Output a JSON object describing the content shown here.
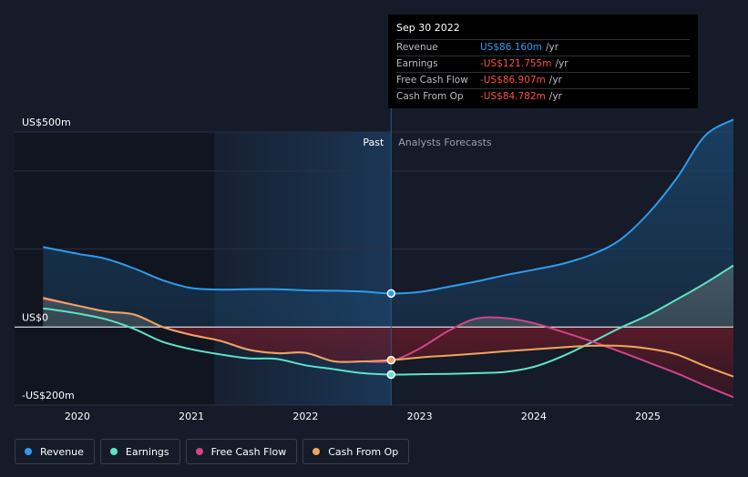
{
  "tooltip": {
    "date": "Sep 30 2022",
    "rows": [
      {
        "name": "Revenue",
        "value": "US$86.160m",
        "unit": "/yr",
        "color": "#2d9cee"
      },
      {
        "name": "Earnings",
        "value": "-US$121.755m",
        "unit": "/yr",
        "color": "#ff4d4d"
      },
      {
        "name": "Free Cash Flow",
        "value": "-US$86.907m",
        "unit": "/yr",
        "color": "#ff4d4d"
      },
      {
        "name": "Cash From Op",
        "value": "-US$84.782m",
        "unit": "/yr",
        "color": "#ff4d4d"
      }
    ]
  },
  "legend": [
    {
      "name": "Revenue",
      "color": "#2d9cee"
    },
    {
      "name": "Earnings",
      "color": "#5fe3c8"
    },
    {
      "name": "Free Cash Flow",
      "color": "#cf4689"
    },
    {
      "name": "Cash From Op",
      "color": "#f0a460"
    }
  ],
  "chart_data": {
    "type": "line",
    "title": "",
    "xlabel": "",
    "ylabel": "",
    "ylim": [
      -200,
      500
    ],
    "xlim": [
      2019.45,
      2025.75
    ],
    "y_tick_labels": [
      {
        "value": 500,
        "label": "US$500m"
      },
      {
        "value": 0,
        "label": "US$0"
      },
      {
        "value": -200,
        "label": "-US$200m"
      }
    ],
    "x_ticks": [
      2020,
      2021,
      2022,
      2023,
      2024,
      2025
    ],
    "x_tick_labels": [
      "2020",
      "2021",
      "2022",
      "2023",
      "2024",
      "2025"
    ],
    "past_label": "Past",
    "forecast_label": "Analysts Forecasts",
    "past_start": 2021.2,
    "past_end": 2022.75,
    "series": [
      {
        "name": "Revenue",
        "color": "#2d9cee",
        "points": [
          [
            2019.7,
            205
          ],
          [
            2020,
            188
          ],
          [
            2020.25,
            175
          ],
          [
            2020.5,
            150
          ],
          [
            2020.75,
            120
          ],
          [
            2021,
            100
          ],
          [
            2021.25,
            96
          ],
          [
            2021.5,
            97
          ],
          [
            2021.75,
            97
          ],
          [
            2022,
            94
          ],
          [
            2022.25,
            93
          ],
          [
            2022.5,
            91
          ],
          [
            2022.75,
            86.16
          ],
          [
            2023,
            90
          ],
          [
            2023.25,
            103
          ],
          [
            2023.5,
            117
          ],
          [
            2023.75,
            133
          ],
          [
            2024,
            147
          ],
          [
            2024.25,
            162
          ],
          [
            2024.5,
            185
          ],
          [
            2024.75,
            222
          ],
          [
            2025,
            290
          ],
          [
            2025.25,
            380
          ],
          [
            2025.5,
            490
          ],
          [
            2025.75,
            532
          ]
        ]
      },
      {
        "name": "Earnings",
        "color": "#5fe3c8",
        "points": [
          [
            2019.7,
            48
          ],
          [
            2020,
            35
          ],
          [
            2020.25,
            20
          ],
          [
            2020.5,
            -5
          ],
          [
            2020.75,
            -38
          ],
          [
            2021,
            -57
          ],
          [
            2021.25,
            -70
          ],
          [
            2021.5,
            -80
          ],
          [
            2021.75,
            -82
          ],
          [
            2022,
            -98
          ],
          [
            2022.25,
            -108
          ],
          [
            2022.5,
            -118
          ],
          [
            2022.75,
            -121.755
          ],
          [
            2023,
            -121
          ],
          [
            2023.25,
            -120
          ],
          [
            2023.5,
            -118
          ],
          [
            2023.75,
            -115
          ],
          [
            2024,
            -102
          ],
          [
            2024.25,
            -75
          ],
          [
            2024.5,
            -40
          ],
          [
            2024.75,
            -3
          ],
          [
            2025,
            30
          ],
          [
            2025.25,
            70
          ],
          [
            2025.5,
            112
          ],
          [
            2025.75,
            158
          ]
        ]
      },
      {
        "name": "Free Cash Flow",
        "color": "#cf4689",
        "points": [
          [
            2019.7,
            72
          ],
          [
            2020,
            55
          ],
          [
            2020.25,
            40
          ],
          [
            2020.5,
            32
          ],
          [
            2020.75,
            0
          ],
          [
            2021,
            -20
          ],
          [
            2021.25,
            -35
          ],
          [
            2021.5,
            -58
          ],
          [
            2021.75,
            -67
          ],
          [
            2022,
            -66
          ],
          [
            2022.25,
            -88
          ],
          [
            2022.5,
            -88
          ],
          [
            2022.75,
            -86.907
          ],
          [
            2023,
            -55
          ],
          [
            2023.25,
            -10
          ],
          [
            2023.5,
            22
          ],
          [
            2023.75,
            23
          ],
          [
            2024,
            10
          ],
          [
            2024.25,
            -12
          ],
          [
            2024.5,
            -36
          ],
          [
            2024.75,
            -62
          ],
          [
            2025,
            -90
          ],
          [
            2025.25,
            -118
          ],
          [
            2025.5,
            -150
          ],
          [
            2025.75,
            -180
          ]
        ]
      },
      {
        "name": "Cash From Op",
        "color": "#f0a460",
        "points": [
          [
            2019.7,
            75
          ],
          [
            2020,
            55
          ],
          [
            2020.25,
            40
          ],
          [
            2020.5,
            32
          ],
          [
            2020.75,
            0
          ],
          [
            2021,
            -20
          ],
          [
            2021.25,
            -35
          ],
          [
            2021.5,
            -58
          ],
          [
            2021.75,
            -67
          ],
          [
            2022,
            -66
          ],
          [
            2022.25,
            -88
          ],
          [
            2022.5,
            -88
          ],
          [
            2022.75,
            -84.782
          ],
          [
            2023,
            -78
          ],
          [
            2023.25,
            -73
          ],
          [
            2023.5,
            -68
          ],
          [
            2023.75,
            -62
          ],
          [
            2024,
            -57
          ],
          [
            2024.25,
            -52
          ],
          [
            2024.5,
            -48
          ],
          [
            2024.75,
            -48
          ],
          [
            2025,
            -55
          ],
          [
            2025.25,
            -70
          ],
          [
            2025.5,
            -100
          ],
          [
            2025.75,
            -127
          ]
        ]
      }
    ]
  }
}
